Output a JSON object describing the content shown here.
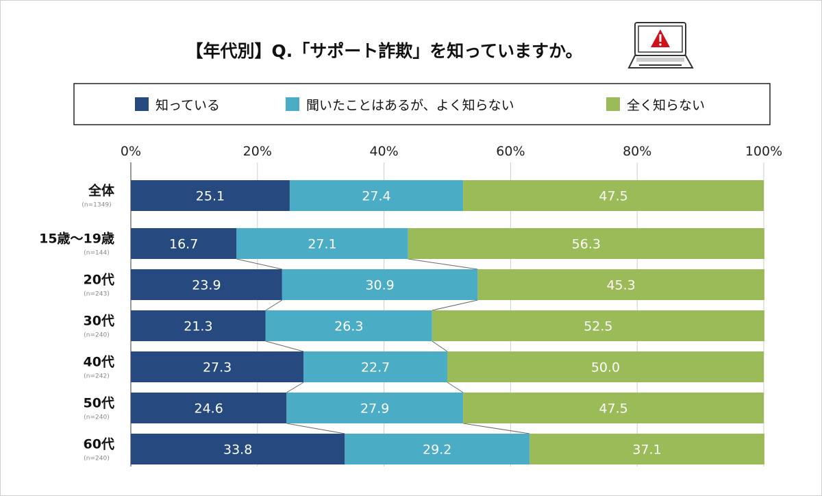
{
  "chart_data": {
    "type": "bar",
    "stacked": true,
    "orientation": "horizontal",
    "title": "【年代別】Q.「サポート詐欺」を知っていますか。",
    "title_icon": "laptop-warning-icon",
    "legend_position": "top",
    "xlim": [
      0,
      100
    ],
    "x_ticks": [
      "0%",
      "20%",
      "40%",
      "60%",
      "80%",
      "100%"
    ],
    "grid": true,
    "categories": [
      "全体",
      "15歳〜19歳",
      "20代",
      "30代",
      "40代",
      "50代",
      "60代"
    ],
    "sample_sizes": [
      "(n=1349)",
      "(n=144)",
      "(n=243)",
      "(n=240)",
      "(n=242)",
      "(n=240)",
      "(n=240)"
    ],
    "series": [
      {
        "name": "知っている",
        "color": "#264a7f",
        "values": [
          25.1,
          16.7,
          23.9,
          21.3,
          27.3,
          24.6,
          33.8
        ]
      },
      {
        "name": "聞いたことはあるが、よく知らない",
        "color": "#4bacc6",
        "values": [
          27.4,
          27.1,
          30.9,
          26.3,
          22.7,
          27.9,
          29.2
        ]
      },
      {
        "name": "全く知らない",
        "color": "#9bbb59",
        "values": [
          47.5,
          56.3,
          45.3,
          52.5,
          50.0,
          47.5,
          37.1
        ]
      }
    ]
  }
}
